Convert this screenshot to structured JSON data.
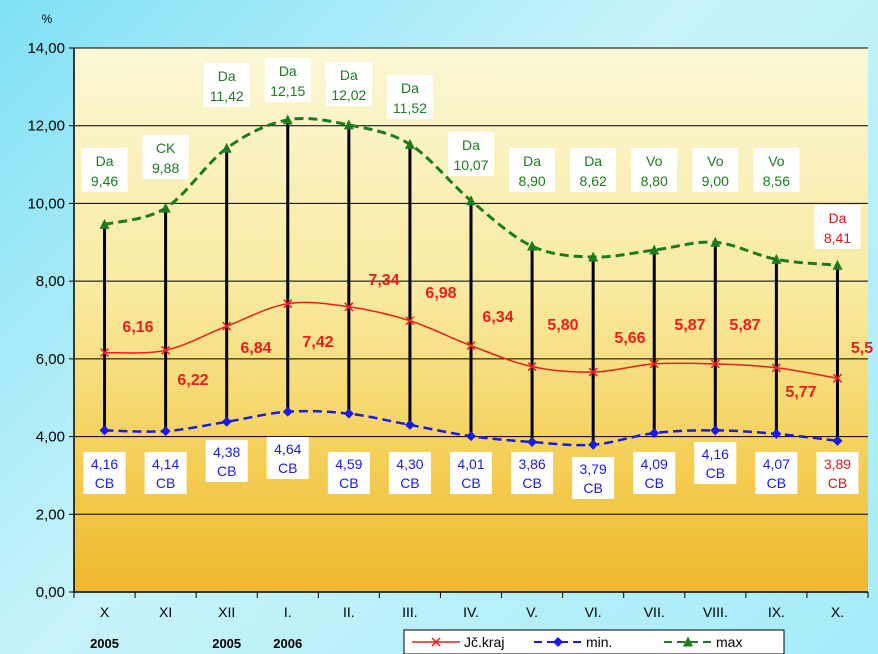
{
  "chart_data": {
    "type": "line",
    "y_unit_label": "%",
    "categories": [
      "X",
      "XI",
      "XII",
      "I.",
      "II.",
      "III.",
      "IV.",
      "V.",
      "VI.",
      "VII.",
      "VIII.",
      "IX.",
      "X."
    ],
    "year_labels": [
      {
        "text": "2005",
        "category_index": 0
      },
      {
        "text": "2005",
        "category_index": 2
      },
      {
        "text": "2006",
        "category_index": 3
      }
    ],
    "ylim": [
      0,
      14
    ],
    "y_ticks": [
      "0,00",
      "2,00",
      "4,00",
      "6,00",
      "8,00",
      "10,00",
      "12,00",
      "14,00"
    ],
    "y_tick_values": [
      0,
      2,
      4,
      6,
      8,
      10,
      12,
      14
    ],
    "series": [
      {
        "name": "Jč.kraj",
        "color": "#ee1c1c",
        "values": [
          6.16,
          6.22,
          6.84,
          7.42,
          7.34,
          6.98,
          6.34,
          5.8,
          5.66,
          5.87,
          5.87,
          5.77,
          5.5
        ],
        "labels": [
          "6,16",
          "6,22",
          "6,84",
          "7,42",
          "7,34",
          "6,98",
          "6,34",
          "5,80",
          "5,66",
          "5,87",
          "5,87",
          "5,77",
          "5,5"
        ]
      },
      {
        "name": "min.",
        "color": "#1a1ae6",
        "values": [
          4.16,
          4.14,
          4.38,
          4.64,
          4.59,
          4.3,
          4.01,
          3.86,
          3.79,
          4.09,
          4.16,
          4.07,
          3.89
        ],
        "labels": [
          "4,16",
          "4,14",
          "4,38",
          "4,64",
          "4,59",
          "4,30",
          "4,01",
          "3,86",
          "3,79",
          "4,09",
          "4,16",
          "4,07",
          "3,89"
        ],
        "codes": [
          "CB",
          "CB",
          "CB",
          "CB",
          "CB",
          "CB",
          "CB",
          "CB",
          "CB",
          "CB",
          "CB",
          "CB",
          "CB"
        ]
      },
      {
        "name": "max",
        "color": "#1e7a1e",
        "values": [
          9.46,
          9.88,
          11.42,
          12.15,
          12.02,
          11.52,
          10.07,
          8.9,
          8.62,
          8.8,
          9.0,
          8.56,
          8.41
        ],
        "labels": [
          "9,46",
          "9,88",
          "11,42",
          "12,15",
          "12,02",
          "11,52",
          "10,07",
          "8,90",
          "8,62",
          "8,80",
          "9,00",
          "8,56",
          "8,41"
        ],
        "codes": [
          "Da",
          "CK",
          "Da",
          "Da",
          "Da",
          "Da",
          "Da",
          "Da",
          "Da",
          "Vo",
          "Vo",
          "Vo",
          "Da"
        ]
      }
    ],
    "legend_position": "bottom",
    "grid": true
  }
}
